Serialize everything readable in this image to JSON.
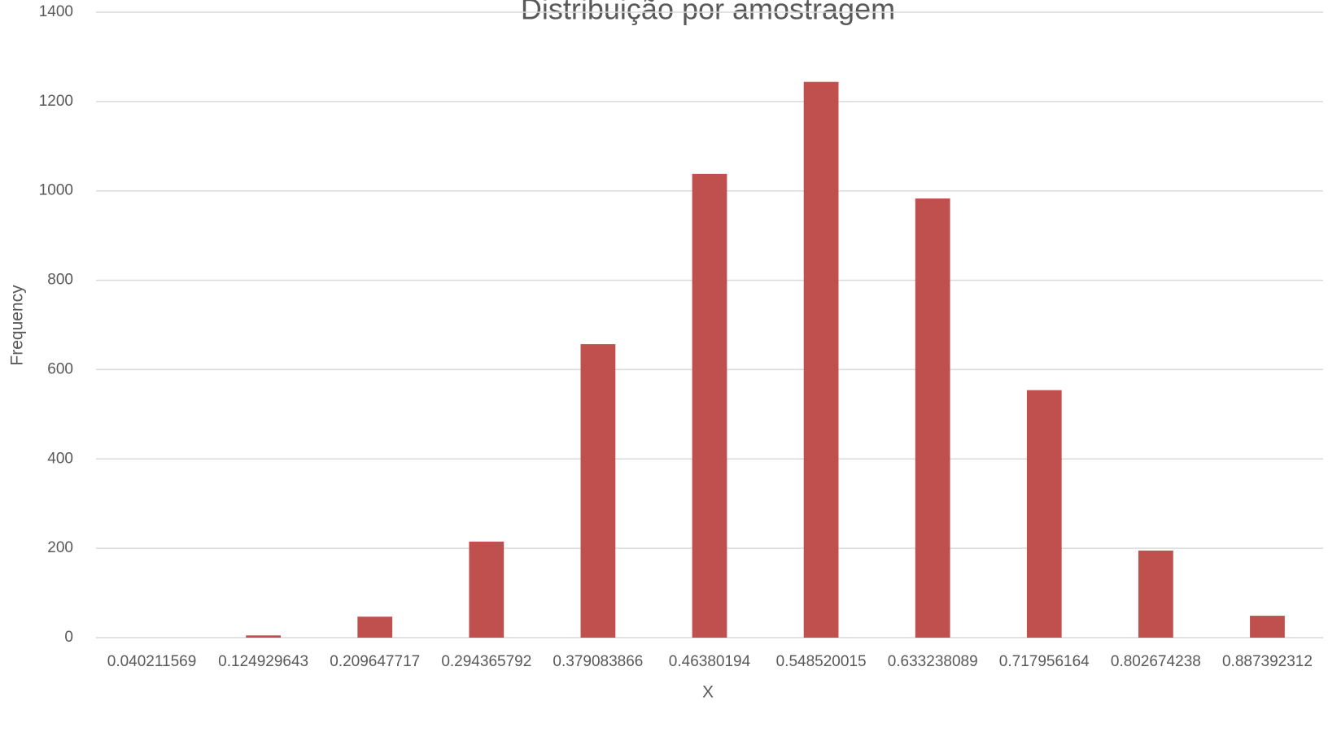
{
  "chart_data": {
    "type": "bar",
    "title": "Distribuição por amostragem",
    "x_label": "X",
    "y_label": "Frequency",
    "categories": [
      "0.040211569",
      "0.124929643",
      "0.209647717",
      "0.294365792",
      "0.379083866",
      "0.46380194",
      "0.548520015",
      "0.633238089",
      "0.717956164",
      "0.802674238",
      "0.887392312"
    ],
    "values": [
      0,
      5,
      47,
      215,
      657,
      1038,
      1244,
      983,
      554,
      195,
      49
    ],
    "color": "#c0504d",
    "ylim": [
      0,
      1400
    ],
    "yticks": [
      0,
      200,
      400,
      600,
      800,
      1000,
      1200,
      1400
    ],
    "grid": true
  }
}
